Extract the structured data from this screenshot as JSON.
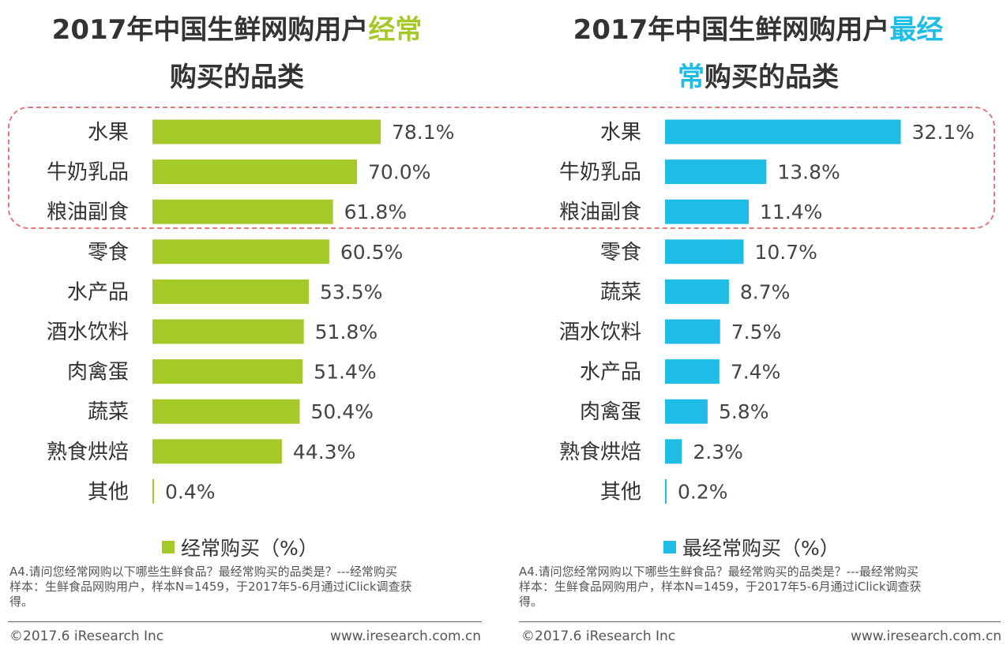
{
  "titles": {
    "left": {
      "prefix": "2017年中国生鲜网购用户",
      "highlight": "经常",
      "line2": "购买的品类"
    },
    "right": {
      "prefix": "2017年中国生鲜网购用户",
      "highlight": "最经",
      "highlight2": "常",
      "line2": "购买的品类"
    }
  },
  "colors": {
    "green": "#a6c92a",
    "blue": "#1fbde6",
    "highlight_box": "#e07a7a"
  },
  "chart_data": [
    {
      "type": "bar",
      "orientation": "horizontal",
      "title": "2017年中国生鲜网购用户经常购买的品类",
      "categories": [
        "水果",
        "牛奶乳品",
        "粮油副食",
        "零食",
        "水产品",
        "酒水饮料",
        "肉禽蛋",
        "蔬菜",
        "熟食烘焙",
        "其他"
      ],
      "values": [
        78.1,
        70.0,
        61.8,
        60.5,
        53.5,
        51.8,
        51.4,
        50.4,
        44.3,
        0.4
      ],
      "value_labels": [
        "78.1%",
        "70.0%",
        "61.8%",
        "60.5%",
        "53.5%",
        "51.8%",
        "51.4%",
        "50.4%",
        "44.3%",
        "0.4%"
      ],
      "unit": "%",
      "xlim": [
        0,
        100
      ],
      "legend": "经常购买（%）",
      "color": "#a6c92a"
    },
    {
      "type": "bar",
      "orientation": "horizontal",
      "title": "2017年中国生鲜网购用户最经常购买的品类",
      "categories": [
        "水果",
        "牛奶乳品",
        "粮油副食",
        "零食",
        "蔬菜",
        "酒水饮料",
        "水产品",
        "肉禽蛋",
        "熟食烘焙",
        "其他"
      ],
      "values": [
        32.1,
        13.8,
        11.4,
        10.7,
        8.7,
        7.5,
        7.4,
        5.8,
        2.3,
        0.2
      ],
      "value_labels": [
        "32.1%",
        "13.8%",
        "11.4%",
        "10.7%",
        "8.7%",
        "7.5%",
        "7.4%",
        "5.8%",
        "2.3%",
        "0.2%"
      ],
      "unit": "%",
      "xlim": [
        0,
        40
      ],
      "legend": "最经常购买（%）",
      "color": "#1fbde6"
    }
  ],
  "notes": {
    "left": [
      "A4.请问您经常网购以下哪些生鲜食品？最经常购买的品类是？---经常购买",
      "样本：生鲜食品网购用户，样本N=1459，于2017年5-6月通过iClick调查获",
      "得。"
    ],
    "right": [
      "A4.请问您经常网购以下哪些生鲜食品？最经常购买的品类是？---最经常购买",
      "样本：生鲜食品网购用户，样本N=1459，于2017年5-6月通过iClick调查获",
      "得。"
    ]
  },
  "footer": {
    "copyright": "©2017.6 iResearch Inc",
    "url": "www.iresearch.com.cn"
  }
}
